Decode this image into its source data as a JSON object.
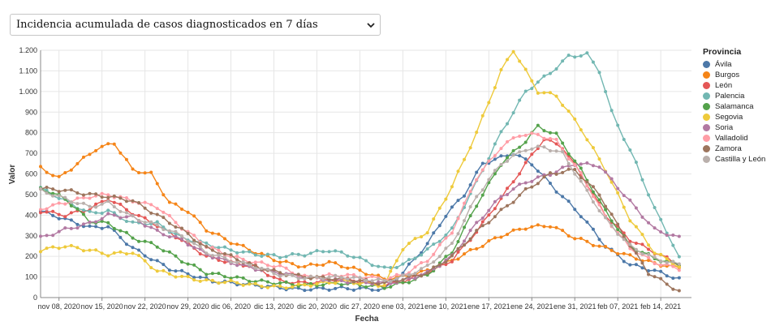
{
  "dropdown": {
    "selected": "Incidencia acumulada de casos diagnosticados en 7 días"
  },
  "legend_title": "Provincia",
  "chart_data": {
    "type": "line",
    "title": "Incidencia acumulada de casos diagnosticados en 7 días",
    "xlabel": "Fecha",
    "ylabel": "Valor",
    "ylim": [
      0,
      1200
    ],
    "yticks": [
      0,
      100,
      200,
      300,
      400,
      500,
      600,
      700,
      800,
      900,
      1000,
      1100,
      1200
    ],
    "ytick_labels": [
      "0",
      "100",
      "200",
      "300",
      "400",
      "500",
      "600",
      "700",
      "800",
      "900",
      "1.000",
      "1.100",
      "1.200"
    ],
    "x_start": "2020-11-05",
    "x_end": "2021-02-19",
    "xticks": [
      "nov 08, 2020",
      "nov 15, 2020",
      "nov 22, 2020",
      "nov 29, 2020",
      "dic 06, 2020",
      "dic 13, 2020",
      "dic 20, 2020",
      "dic 27, 2020",
      "ene 03, 2021",
      "ene 10, 2021",
      "ene 17, 2021",
      "ene 24, 2021",
      "ene 31, 2021",
      "feb 07, 2021",
      "feb 14, 2021"
    ],
    "xtick_days": [
      3,
      10,
      17,
      24,
      31,
      38,
      45,
      52,
      59,
      66,
      73,
      80,
      87,
      94,
      101
    ],
    "grid": true,
    "legend_position": "right",
    "series": [
      {
        "name": "Ávila",
        "color": "#4c78a8",
        "points": [
          [
            0,
            420
          ],
          [
            4,
            380
          ],
          [
            8,
            340
          ],
          [
            11,
            345
          ],
          [
            15,
            240
          ],
          [
            21,
            140
          ],
          [
            28,
            80
          ],
          [
            35,
            60
          ],
          [
            42,
            40
          ],
          [
            49,
            45
          ],
          [
            56,
            40
          ],
          [
            59,
            120
          ],
          [
            63,
            260
          ],
          [
            66,
            400
          ],
          [
            69,
            500
          ],
          [
            72,
            650
          ],
          [
            77,
            700
          ],
          [
            80,
            650
          ],
          [
            84,
            520
          ],
          [
            88,
            400
          ],
          [
            92,
            250
          ],
          [
            96,
            160
          ],
          [
            100,
            130
          ],
          [
            104,
            90
          ]
        ]
      },
      {
        "name": "Burgos",
        "color": "#f58518",
        "points": [
          [
            0,
            630
          ],
          [
            3,
            580
          ],
          [
            6,
            650
          ],
          [
            9,
            720
          ],
          [
            12,
            750
          ],
          [
            15,
            620
          ],
          [
            18,
            600
          ],
          [
            21,
            460
          ],
          [
            24,
            420
          ],
          [
            27,
            330
          ],
          [
            31,
            270
          ],
          [
            35,
            220
          ],
          [
            39,
            175
          ],
          [
            43,
            150
          ],
          [
            47,
            170
          ],
          [
            51,
            140
          ],
          [
            56,
            90
          ],
          [
            59,
            100
          ],
          [
            63,
            130
          ],
          [
            67,
            180
          ],
          [
            71,
            240
          ],
          [
            75,
            300
          ],
          [
            79,
            340
          ],
          [
            83,
            350
          ],
          [
            87,
            290
          ],
          [
            91,
            250
          ],
          [
            95,
            210
          ],
          [
            100,
            165
          ],
          [
            104,
            145
          ]
        ]
      },
      {
        "name": "León",
        "color": "#e45756",
        "points": [
          [
            0,
            420
          ],
          [
            4,
            400
          ],
          [
            8,
            430
          ],
          [
            11,
            480
          ],
          [
            15,
            410
          ],
          [
            19,
            350
          ],
          [
            23,
            280
          ],
          [
            27,
            200
          ],
          [
            31,
            170
          ],
          [
            35,
            150
          ],
          [
            39,
            80
          ],
          [
            43,
            70
          ],
          [
            49,
            90
          ],
          [
            56,
            60
          ],
          [
            59,
            80
          ],
          [
            63,
            120
          ],
          [
            67,
            180
          ],
          [
            71,
            320
          ],
          [
            75,
            480
          ],
          [
            79,
            650
          ],
          [
            82,
            770
          ],
          [
            85,
            730
          ],
          [
            88,
            600
          ],
          [
            92,
            400
          ],
          [
            96,
            280
          ],
          [
            100,
            220
          ],
          [
            104,
            160
          ]
        ]
      },
      {
        "name": "Palencia",
        "color": "#72b7b2",
        "points": [
          [
            0,
            530
          ],
          [
            4,
            470
          ],
          [
            8,
            410
          ],
          [
            11,
            420
          ],
          [
            15,
            360
          ],
          [
            19,
            360
          ],
          [
            23,
            290
          ],
          [
            27,
            260
          ],
          [
            31,
            230
          ],
          [
            35,
            210
          ],
          [
            39,
            200
          ],
          [
            43,
            210
          ],
          [
            47,
            230
          ],
          [
            51,
            200
          ],
          [
            56,
            140
          ],
          [
            59,
            160
          ],
          [
            63,
            230
          ],
          [
            67,
            330
          ],
          [
            71,
            560
          ],
          [
            75,
            800
          ],
          [
            79,
            1000
          ],
          [
            83,
            1090
          ],
          [
            86,
            1170
          ],
          [
            89,
            1180
          ],
          [
            91,
            1100
          ],
          [
            93,
            900
          ],
          [
            97,
            650
          ],
          [
            100,
            430
          ],
          [
            102,
            320
          ],
          [
            104,
            190
          ]
        ]
      },
      {
        "name": "Salamanca",
        "color": "#54a24b",
        "points": [
          [
            0,
            530
          ],
          [
            4,
            480
          ],
          [
            8,
            370
          ],
          [
            11,
            360
          ],
          [
            15,
            290
          ],
          [
            19,
            250
          ],
          [
            23,
            180
          ],
          [
            27,
            120
          ],
          [
            31,
            100
          ],
          [
            35,
            80
          ],
          [
            39,
            70
          ],
          [
            43,
            60
          ],
          [
            49,
            70
          ],
          [
            56,
            50
          ],
          [
            59,
            70
          ],
          [
            63,
            110
          ],
          [
            67,
            220
          ],
          [
            71,
            450
          ],
          [
            75,
            650
          ],
          [
            79,
            760
          ],
          [
            81,
            830
          ],
          [
            84,
            790
          ],
          [
            88,
            620
          ],
          [
            92,
            420
          ],
          [
            96,
            250
          ],
          [
            100,
            190
          ],
          [
            104,
            160
          ]
        ]
      },
      {
        "name": "Segovia",
        "color": "#eeca3b",
        "points": [
          [
            0,
            230
          ],
          [
            4,
            250
          ],
          [
            8,
            230
          ],
          [
            11,
            210
          ],
          [
            15,
            220
          ],
          [
            19,
            130
          ],
          [
            23,
            100
          ],
          [
            27,
            80
          ],
          [
            31,
            75
          ],
          [
            35,
            60
          ],
          [
            39,
            50
          ],
          [
            43,
            60
          ],
          [
            49,
            80
          ],
          [
            56,
            60
          ],
          [
            59,
            240
          ],
          [
            63,
            320
          ],
          [
            67,
            540
          ],
          [
            71,
            800
          ],
          [
            75,
            1100
          ],
          [
            77,
            1200
          ],
          [
            79,
            1100
          ],
          [
            81,
            1000
          ],
          [
            84,
            980
          ],
          [
            88,
            820
          ],
          [
            92,
            620
          ],
          [
            96,
            380
          ],
          [
            100,
            220
          ],
          [
            104,
            150
          ]
        ]
      },
      {
        "name": "Soria",
        "color": "#b279a2",
        "points": [
          [
            0,
            290
          ],
          [
            4,
            330
          ],
          [
            8,
            360
          ],
          [
            11,
            400
          ],
          [
            15,
            390
          ],
          [
            19,
            320
          ],
          [
            23,
            280
          ],
          [
            27,
            210
          ],
          [
            31,
            170
          ],
          [
            35,
            140
          ],
          [
            39,
            120
          ],
          [
            43,
            100
          ],
          [
            49,
            80
          ],
          [
            56,
            70
          ],
          [
            59,
            80
          ],
          [
            63,
            120
          ],
          [
            67,
            200
          ],
          [
            71,
            360
          ],
          [
            75,
            490
          ],
          [
            79,
            560
          ],
          [
            83,
            600
          ],
          [
            87,
            650
          ],
          [
            91,
            640
          ],
          [
            95,
            500
          ],
          [
            100,
            330
          ],
          [
            104,
            290
          ]
        ]
      },
      {
        "name": "Valladolid",
        "color": "#ff9da6",
        "points": [
          [
            0,
            430
          ],
          [
            4,
            460
          ],
          [
            8,
            490
          ],
          [
            11,
            500
          ],
          [
            15,
            470
          ],
          [
            19,
            440
          ],
          [
            23,
            340
          ],
          [
            27,
            250
          ],
          [
            31,
            200
          ],
          [
            35,
            170
          ],
          [
            39,
            150
          ],
          [
            43,
            100
          ],
          [
            49,
            110
          ],
          [
            56,
            90
          ],
          [
            59,
            110
          ],
          [
            63,
            180
          ],
          [
            67,
            320
          ],
          [
            71,
            580
          ],
          [
            75,
            730
          ],
          [
            78,
            790
          ],
          [
            81,
            790
          ],
          [
            84,
            760
          ],
          [
            88,
            600
          ],
          [
            92,
            390
          ],
          [
            96,
            240
          ],
          [
            100,
            170
          ],
          [
            104,
            140
          ]
        ]
      },
      {
        "name": "Zamora",
        "color": "#9d755d",
        "points": [
          [
            0,
            530
          ],
          [
            4,
            520
          ],
          [
            8,
            500
          ],
          [
            11,
            490
          ],
          [
            15,
            470
          ],
          [
            19,
            400
          ],
          [
            23,
            330
          ],
          [
            27,
            240
          ],
          [
            31,
            200
          ],
          [
            35,
            150
          ],
          [
            39,
            120
          ],
          [
            43,
            100
          ],
          [
            49,
            90
          ],
          [
            56,
            70
          ],
          [
            59,
            90
          ],
          [
            63,
            120
          ],
          [
            67,
            200
          ],
          [
            71,
            320
          ],
          [
            75,
            420
          ],
          [
            79,
            520
          ],
          [
            83,
            600
          ],
          [
            87,
            620
          ],
          [
            91,
            500
          ],
          [
            95,
            300
          ],
          [
            99,
            120
          ],
          [
            104,
            30
          ]
        ]
      },
      {
        "name": "Castilla y León",
        "color": "#bab0ac",
        "points": [
          [
            0,
            520
          ],
          [
            4,
            480
          ],
          [
            8,
            440
          ],
          [
            11,
            460
          ],
          [
            15,
            390
          ],
          [
            19,
            350
          ],
          [
            23,
            300
          ],
          [
            27,
            220
          ],
          [
            31,
            180
          ],
          [
            35,
            150
          ],
          [
            39,
            110
          ],
          [
            43,
            95
          ],
          [
            49,
            100
          ],
          [
            56,
            80
          ],
          [
            59,
            100
          ],
          [
            63,
            150
          ],
          [
            67,
            260
          ],
          [
            71,
            490
          ],
          [
            75,
            650
          ],
          [
            79,
            720
          ],
          [
            82,
            730
          ],
          [
            85,
            700
          ],
          [
            88,
            560
          ],
          [
            92,
            380
          ],
          [
            96,
            250
          ],
          [
            100,
            190
          ],
          [
            104,
            160
          ]
        ]
      }
    ]
  }
}
